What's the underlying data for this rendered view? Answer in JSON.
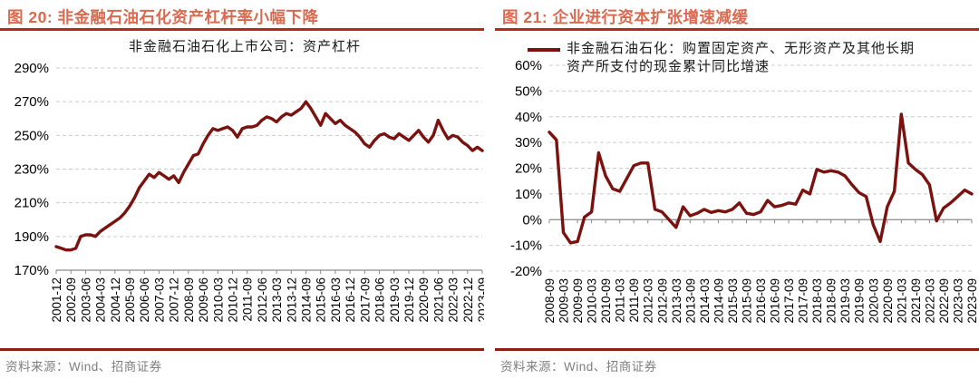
{
  "styles": {
    "accent_title": "#d96a4f",
    "title_rule": "#b42a1d",
    "source_rule": "#8e1d12",
    "line_color": "#7a120f",
    "grid_color": "#cccccc",
    "axis_color": "#8a8a8a",
    "tick_text_color": "#000000",
    "source_text_color": "#7f7f7f",
    "background": "#ffffff"
  },
  "figures": [
    {
      "id": "figure-20",
      "title": "图 20: 非金融石油石化资产杠杆率小幅下降",
      "source": "资料来源：Wind、招商证券"
    },
    {
      "id": "figure-21",
      "title": "图 21: 企业进行资本扩张增速减缓",
      "source": "资料来源：Wind、招商证券"
    }
  ],
  "chart_data": [
    {
      "type": "line",
      "title": "非金融石油石化上市公司：资产杠杆",
      "unit": "%",
      "ylim": [
        170,
        290
      ],
      "ytick_step": 20,
      "axis_at": 170,
      "grid": "horizontal-dashed",
      "legend_position": "none",
      "x": [
        "2001-12",
        "2002-03",
        "2002-06",
        "2002-09",
        "2002-12",
        "2003-03",
        "2003-06",
        "2003-09",
        "2003-12",
        "2004-03",
        "2004-06",
        "2004-09",
        "2004-12",
        "2005-03",
        "2005-06",
        "2005-09",
        "2005-12",
        "2006-03",
        "2006-06",
        "2006-09",
        "2006-12",
        "2007-03",
        "2007-06",
        "2007-09",
        "2007-12",
        "2008-03",
        "2008-06",
        "2008-09",
        "2008-12",
        "2009-03",
        "2009-06",
        "2009-09",
        "2009-12",
        "2010-03",
        "2010-06",
        "2010-09",
        "2010-12",
        "2011-03",
        "2011-06",
        "2011-09",
        "2011-12",
        "2012-03",
        "2012-06",
        "2012-09",
        "2012-12",
        "2013-03",
        "2013-06",
        "2013-09",
        "2013-12",
        "2014-03",
        "2014-06",
        "2014-09",
        "2014-12",
        "2015-03",
        "2015-06",
        "2015-09",
        "2015-12",
        "2016-03",
        "2016-06",
        "2016-09",
        "2016-12",
        "2017-03",
        "2017-06",
        "2017-09",
        "2017-12",
        "2018-03",
        "2018-06",
        "2018-09",
        "2018-12",
        "2019-03",
        "2019-06",
        "2019-09",
        "2019-12",
        "2020-03",
        "2020-06",
        "2020-09",
        "2020-12",
        "2021-03",
        "2021-06",
        "2021-09",
        "2021-12",
        "2022-03",
        "2022-06",
        "2022-09",
        "2022-12",
        "2023-03",
        "2023-06",
        "2023-09"
      ],
      "series": [
        {
          "name": "非金融石油石化上市公司：资产杠杆",
          "values": [
            184,
            183,
            182,
            182,
            183,
            190,
            191,
            191,
            190,
            193,
            195,
            197,
            199,
            201,
            204,
            208,
            213,
            219,
            223,
            227,
            225,
            228,
            226,
            224,
            226,
            222,
            228,
            233,
            238,
            239,
            245,
            250,
            254,
            253,
            254,
            255,
            253,
            249,
            254,
            255,
            255,
            256,
            259,
            261,
            260,
            258,
            261,
            263,
            262,
            264,
            266,
            270,
            266,
            261,
            256,
            263,
            260,
            257,
            259,
            256,
            254,
            252,
            249,
            245,
            243,
            247,
            250,
            251,
            249,
            248,
            251,
            249,
            247,
            250,
            253,
            249,
            246,
            250,
            259,
            253,
            248,
            250,
            249,
            246,
            244,
            241,
            243,
            241
          ]
        }
      ],
      "xtick_labels": [
        "2001-12",
        "2002-09",
        "2003-06",
        "2004-03",
        "2004-12",
        "2005-09",
        "2006-06",
        "2007-03",
        "2007-12",
        "2008-09",
        "2009-06",
        "2010-03",
        "2010-12",
        "2011-09",
        "2012-06",
        "2013-03",
        "2013-12",
        "2014-09",
        "2015-06",
        "2016-03",
        "2016-12",
        "2017-09",
        "2018-06",
        "2019-03",
        "2019-12",
        "2020-09",
        "2021-06",
        "2022-03",
        "2022-12",
        "2023-09"
      ]
    },
    {
      "type": "line",
      "title": "",
      "unit": "%",
      "ylim": [
        -20,
        60
      ],
      "ytick_step": 10,
      "axis_at": 0,
      "grid": "horizontal-dashed",
      "legend_position": "top",
      "x": [
        "2008-09",
        "2008-12",
        "2009-03",
        "2009-06",
        "2009-09",
        "2009-12",
        "2010-03",
        "2010-06",
        "2010-09",
        "2010-12",
        "2011-03",
        "2011-06",
        "2011-09",
        "2011-12",
        "2012-03",
        "2012-06",
        "2012-09",
        "2012-12",
        "2013-03",
        "2013-06",
        "2013-09",
        "2013-12",
        "2014-03",
        "2014-06",
        "2014-09",
        "2014-12",
        "2015-03",
        "2015-06",
        "2015-09",
        "2015-12",
        "2016-03",
        "2016-06",
        "2016-09",
        "2016-12",
        "2017-03",
        "2017-06",
        "2017-09",
        "2017-12",
        "2018-03",
        "2018-06",
        "2018-09",
        "2018-12",
        "2019-03",
        "2019-06",
        "2019-09",
        "2019-12",
        "2020-03",
        "2020-06",
        "2020-09",
        "2020-12",
        "2021-03",
        "2021-06",
        "2021-09",
        "2021-12",
        "2022-03",
        "2022-06",
        "2022-09",
        "2022-12",
        "2023-03",
        "2023-06",
        "2023-09"
      ],
      "series": [
        {
          "name": "非金融石油石化：购置固定资产、无形资产及其他长期资产所支付的现金累计同比增速",
          "values": [
            34,
            31,
            -5,
            -9,
            -8.5,
            1,
            3,
            26,
            17,
            12,
            11,
            16,
            21,
            22,
            22,
            4,
            3,
            0,
            -3,
            5,
            1.5,
            2.5,
            4,
            2.8,
            3.5,
            3,
            4,
            6.5,
            2.5,
            2,
            3,
            7.5,
            5,
            5.5,
            6.5,
            6,
            11.5,
            10,
            19.5,
            18.5,
            19,
            18.5,
            17,
            13.5,
            10.5,
            9,
            -2,
            -8.5,
            5,
            11,
            41,
            22,
            19.5,
            17.5,
            13.5,
            -0.5,
            4.5,
            6.5,
            9,
            11.5,
            10
          ]
        }
      ],
      "xtick_labels": [
        "2008-09",
        "2009-03",
        "2009-09",
        "2010-03",
        "2010-09",
        "2011-03",
        "2011-09",
        "2012-03",
        "2012-09",
        "2013-03",
        "2013-09",
        "2014-03",
        "2014-09",
        "2015-03",
        "2015-09",
        "2016-03",
        "2016-09",
        "2017-03",
        "2017-09",
        "2018-03",
        "2018-09",
        "2019-03",
        "2019-09",
        "2020-03",
        "2020-09",
        "2021-03",
        "2021-09",
        "2022-03",
        "2022-09",
        "2023-03",
        "2023-09"
      ]
    }
  ]
}
